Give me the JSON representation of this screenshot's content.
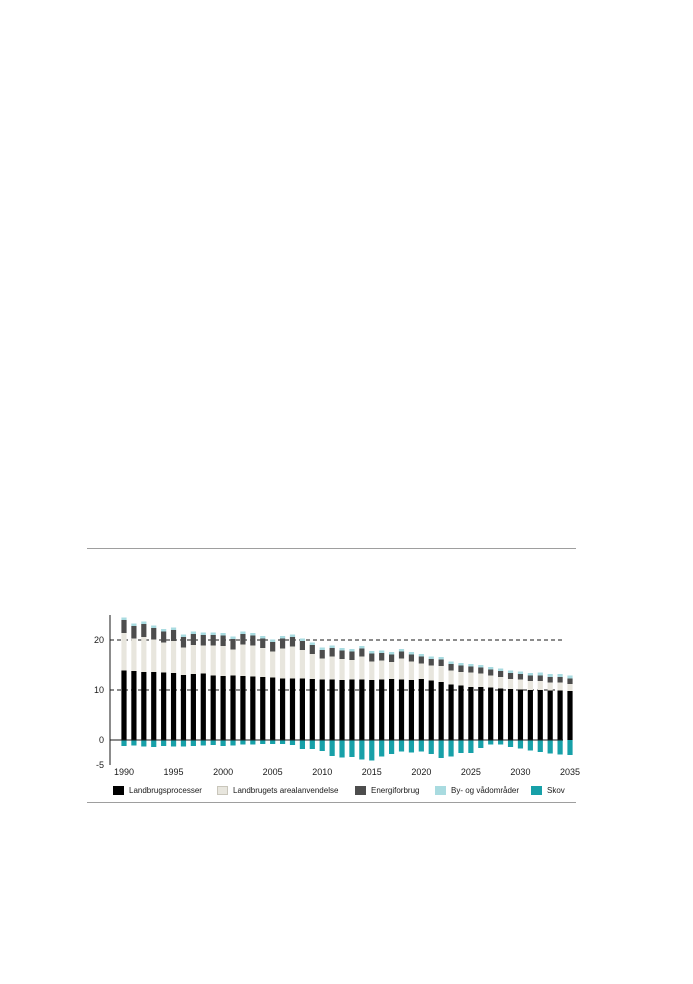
{
  "chart_data": {
    "type": "bar",
    "stacked": true,
    "title": "",
    "xlabel": "",
    "ylabel": "",
    "ylim": [
      -5,
      25
    ],
    "y_ticks": [
      -5,
      0,
      10,
      20
    ],
    "x_tick_labels": [
      "1990",
      "1995",
      "2000",
      "2005",
      "2010",
      "2015",
      "2020",
      "2025",
      "2030",
      "2035"
    ],
    "dashed_gridlines": [
      10,
      20
    ],
    "legend_position": "bottom",
    "categories": [
      1990,
      1991,
      1992,
      1993,
      1994,
      1995,
      1996,
      1997,
      1998,
      1999,
      2000,
      2001,
      2002,
      2003,
      2004,
      2005,
      2006,
      2007,
      2008,
      2009,
      2010,
      2011,
      2012,
      2013,
      2014,
      2015,
      2016,
      2017,
      2018,
      2019,
      2020,
      2021,
      2022,
      2023,
      2024,
      2025,
      2026,
      2027,
      2028,
      2029,
      2030,
      2031,
      2032,
      2033,
      2034,
      2035
    ],
    "series": [
      {
        "name": "Landbrugsprocesser",
        "color": "#000000",
        "values": [
          13.9,
          13.8,
          13.6,
          13.6,
          13.5,
          13.4,
          13.0,
          13.2,
          13.3,
          12.9,
          12.8,
          12.9,
          12.8,
          12.7,
          12.6,
          12.5,
          12.3,
          12.3,
          12.3,
          12.2,
          12.1,
          12.1,
          12.0,
          12.1,
          12.1,
          12.0,
          12.1,
          12.2,
          12.1,
          12.0,
          12.2,
          11.9,
          11.6,
          11.1,
          10.9,
          10.6,
          10.6,
          10.5,
          10.3,
          10.2,
          10.1,
          10.0,
          10.0,
          9.9,
          9.9,
          9.8
        ]
      },
      {
        "name": "Landbrugets arealanvendelse",
        "color": "#e8e6de",
        "values": [
          7.5,
          6.5,
          7.0,
          6.5,
          6.0,
          6.4,
          5.5,
          5.8,
          5.6,
          6.0,
          6.0,
          5.2,
          6.3,
          6.2,
          5.8,
          5.2,
          6.0,
          6.4,
          5.7,
          5.0,
          4.2,
          4.6,
          4.2,
          3.9,
          4.6,
          3.7,
          3.8,
          3.4,
          4.2,
          3.7,
          3.1,
          3.0,
          3.2,
          2.8,
          2.7,
          2.9,
          2.7,
          2.4,
          2.3,
          2.0,
          2.0,
          1.8,
          1.8,
          1.6,
          1.6,
          1.4
        ]
      },
      {
        "name": "Energiforbrug",
        "color": "#4d4d4d",
        "values": [
          2.6,
          2.5,
          2.6,
          2.3,
          2.2,
          2.2,
          2.1,
          2.2,
          2.1,
          2.1,
          2.1,
          2.1,
          2.1,
          2.0,
          1.9,
          1.9,
          2.0,
          1.9,
          1.8,
          1.8,
          1.7,
          1.7,
          1.7,
          1.7,
          1.6,
          1.6,
          1.5,
          1.5,
          1.4,
          1.4,
          1.4,
          1.3,
          1.3,
          1.3,
          1.3,
          1.2,
          1.2,
          1.2,
          1.2,
          1.2,
          1.1,
          1.1,
          1.1,
          1.1,
          1.1,
          1.1
        ]
      },
      {
        "name": "By- og vådområder",
        "color": "#a9dbe0",
        "values": [
          0.5,
          0.5,
          0.5,
          0.5,
          0.5,
          0.5,
          0.5,
          0.5,
          0.5,
          0.5,
          0.5,
          0.5,
          0.5,
          0.5,
          0.5,
          0.5,
          0.5,
          0.5,
          0.5,
          0.5,
          0.5,
          0.5,
          0.5,
          0.5,
          0.5,
          0.5,
          0.5,
          0.5,
          0.5,
          0.5,
          0.5,
          0.5,
          0.5,
          0.5,
          0.5,
          0.5,
          0.5,
          0.5,
          0.5,
          0.5,
          0.5,
          0.5,
          0.6,
          0.6,
          0.6,
          0.6
        ]
      },
      {
        "name": "Skov",
        "color": "#17a0a8",
        "values": [
          -1.2,
          -1.1,
          -1.3,
          -1.4,
          -1.2,
          -1.3,
          -1.3,
          -1.2,
          -1.1,
          -1.0,
          -1.2,
          -1.1,
          -0.9,
          -0.9,
          -0.8,
          -0.8,
          -0.8,
          -1.0,
          -1.8,
          -1.8,
          -2.2,
          -3.2,
          -3.5,
          -3.4,
          -3.9,
          -4.1,
          -3.3,
          -2.8,
          -2.3,
          -2.5,
          -2.3,
          -2.8,
          -3.6,
          -3.3,
          -2.6,
          -2.6,
          -1.6,
          -0.9,
          -0.9,
          -1.4,
          -1.7,
          -2.1,
          -2.4,
          -2.7,
          -2.9,
          -3.0
        ]
      }
    ]
  }
}
